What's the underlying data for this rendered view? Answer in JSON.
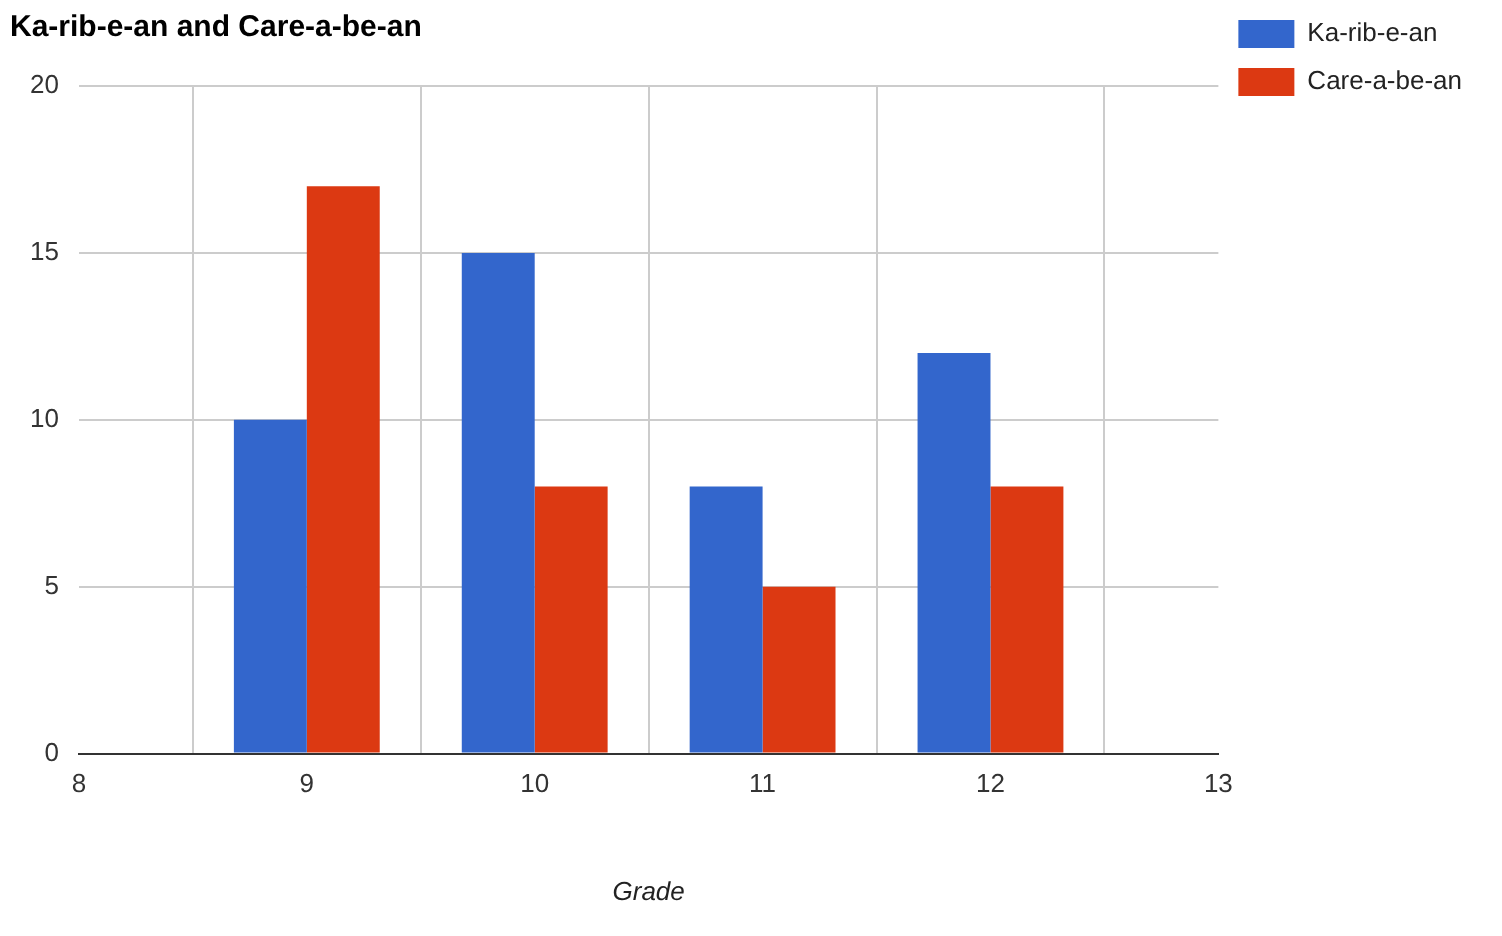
{
  "chart_data": {
    "type": "bar",
    "title": "Ka-rib-e-an and Care-a-be-an",
    "xlabel": "Grade",
    "x": [
      9,
      10,
      11,
      12
    ],
    "series": [
      {
        "name": "Ka-rib-e-an",
        "color": "#3366cc",
        "values": [
          10,
          15,
          8,
          12
        ]
      },
      {
        "name": "Care-a-be-an",
        "color": "#dc3912",
        "values": [
          17,
          8,
          5,
          8
        ]
      }
    ],
    "xlim": [
      8,
      13
    ],
    "xticks": [
      8,
      9,
      10,
      11,
      12,
      13
    ],
    "ylim": [
      0,
      20
    ],
    "yticks": [
      0,
      5,
      10,
      15,
      20
    ],
    "grid": true,
    "legend": "top right"
  }
}
